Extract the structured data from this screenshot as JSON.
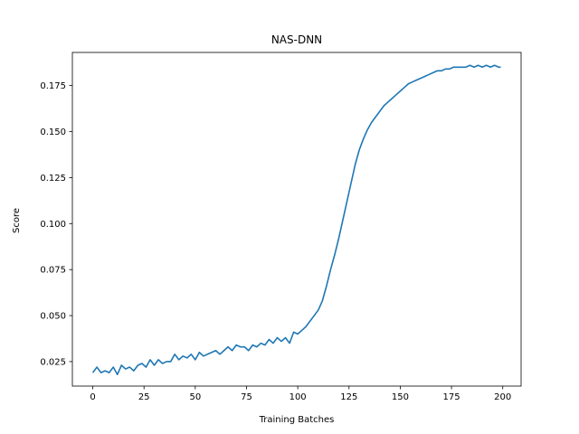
{
  "chart_data": {
    "type": "line",
    "title": "NAS-DNN",
    "xlabel": "Training Batches",
    "ylabel": "Score",
    "xlim": [
      -9.95,
      208.95
    ],
    "ylim": [
      0.0117,
      0.193
    ],
    "xticks": [
      0,
      25,
      50,
      75,
      100,
      125,
      150,
      175,
      200
    ],
    "xtick_labels": [
      "0",
      "25",
      "50",
      "75",
      "100",
      "125",
      "150",
      "175",
      "200"
    ],
    "yticks": [
      0.025,
      0.05,
      0.075,
      0.1,
      0.125,
      0.15,
      0.175
    ],
    "ytick_labels": [
      "0.025",
      "0.050",
      "0.075",
      "0.100",
      "0.125",
      "0.150",
      "0.175"
    ],
    "grid": false,
    "legend": "none",
    "series": [
      {
        "color": "#1f77b4",
        "x": [
          0,
          2,
          4,
          6,
          8,
          10,
          12,
          14,
          16,
          18,
          20,
          22,
          24,
          26,
          28,
          30,
          32,
          34,
          36,
          38,
          40,
          42,
          44,
          46,
          48,
          50,
          52,
          54,
          56,
          58,
          60,
          62,
          64,
          66,
          68,
          70,
          72,
          74,
          76,
          78,
          80,
          82,
          84,
          86,
          88,
          90,
          92,
          94,
          96,
          98,
          100,
          102,
          104,
          106,
          108,
          110,
          112,
          114,
          116,
          118,
          120,
          122,
          124,
          126,
          128,
          130,
          132,
          134,
          136,
          138,
          140,
          142,
          144,
          146,
          148,
          150,
          152,
          154,
          156,
          158,
          160,
          162,
          164,
          166,
          168,
          170,
          172,
          174,
          176,
          178,
          180,
          182,
          184,
          186,
          188,
          190,
          192,
          194,
          196,
          198,
          199
        ],
        "y": [
          0.019,
          0.022,
          0.019,
          0.02,
          0.019,
          0.022,
          0.018,
          0.023,
          0.021,
          0.022,
          0.02,
          0.023,
          0.024,
          0.022,
          0.026,
          0.023,
          0.026,
          0.024,
          0.025,
          0.025,
          0.029,
          0.026,
          0.028,
          0.027,
          0.029,
          0.026,
          0.03,
          0.028,
          0.029,
          0.03,
          0.031,
          0.029,
          0.031,
          0.033,
          0.031,
          0.034,
          0.033,
          0.033,
          0.031,
          0.034,
          0.033,
          0.035,
          0.034,
          0.037,
          0.035,
          0.038,
          0.036,
          0.038,
          0.035,
          0.041,
          0.04,
          0.042,
          0.044,
          0.047,
          0.05,
          0.053,
          0.058,
          0.066,
          0.075,
          0.083,
          0.092,
          0.102,
          0.112,
          0.122,
          0.132,
          0.14,
          0.146,
          0.151,
          0.155,
          0.158,
          0.161,
          0.164,
          0.166,
          0.168,
          0.17,
          0.172,
          0.174,
          0.176,
          0.177,
          0.178,
          0.179,
          0.18,
          0.181,
          0.182,
          0.183,
          0.183,
          0.184,
          0.184,
          0.185,
          0.185,
          0.185,
          0.185,
          0.186,
          0.185,
          0.186,
          0.185,
          0.186,
          0.185,
          0.186,
          0.185,
          0.185
        ]
      }
    ]
  }
}
